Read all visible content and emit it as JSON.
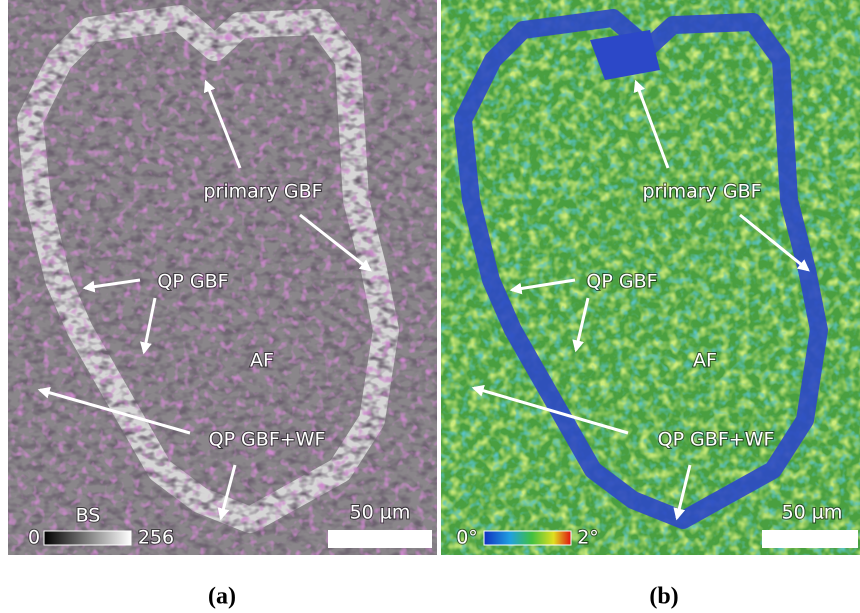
{
  "panels": [
    {
      "labels": [
        "primary GBF",
        "QP GBF",
        "AF",
        "QP GBF+WF"
      ],
      "scale_bar": "50 µm",
      "colorbar": {
        "title": "BS",
        "min": "0",
        "max": "256"
      },
      "caption": "(a)"
    },
    {
      "labels": [
        "primary GBF",
        "QP GBF",
        "AF",
        "QP GBF+WF"
      ],
      "scale_bar": "50 µm",
      "colorbar": {
        "min": "0°",
        "max": "2°"
      },
      "caption": "(b)"
    }
  ]
}
